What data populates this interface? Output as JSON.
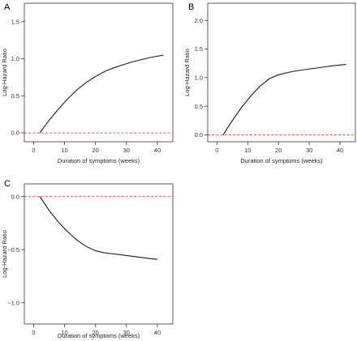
{
  "chart_data": [
    {
      "type": "line",
      "panel": "A",
      "xlabel": "Duration of symptoms (weeks)",
      "ylabel": "Log-Hazard Ratio",
      "xlim": [
        -3,
        45
      ],
      "ylim": [
        -0.12,
        1.75
      ],
      "xticks": [
        0,
        10,
        20,
        30,
        40
      ],
      "yticks": [
        0.0,
        0.5,
        1.0,
        1.5
      ],
      "ytick_labels": [
        "0.0",
        "0.5",
        "1.0",
        "1.5"
      ],
      "reference_line": {
        "y": 0,
        "color": "#e8443a"
      },
      "series": [
        {
          "x": [
            2,
            5,
            8,
            11,
            14,
            17,
            20,
            23,
            26,
            29,
            32,
            35,
            38,
            42
          ],
          "y": [
            0.0,
            0.17,
            0.32,
            0.46,
            0.58,
            0.68,
            0.76,
            0.83,
            0.88,
            0.92,
            0.96,
            0.99,
            1.02,
            1.05
          ]
        }
      ]
    },
    {
      "type": "line",
      "panel": "B",
      "xlabel": "Duration of symptoms (weeks)",
      "ylabel": "Log-Hazard Ratio",
      "xlim": [
        -3,
        45
      ],
      "ylim": [
        -0.12,
        2.3
      ],
      "xticks": [
        0,
        10,
        20,
        30,
        40
      ],
      "yticks": [
        0.0,
        0.5,
        1.0,
        1.5,
        2.0
      ],
      "ytick_labels": [
        "0.0",
        "0.5",
        "1.0",
        "1.5",
        "2.0"
      ],
      "reference_line": {
        "y": 0,
        "color": "#e8443a"
      },
      "series": [
        {
          "x": [
            2,
            5,
            8,
            11,
            14,
            17,
            20,
            23,
            26,
            30,
            34,
            38,
            42
          ],
          "y": [
            0.0,
            0.25,
            0.48,
            0.68,
            0.85,
            0.98,
            1.05,
            1.09,
            1.12,
            1.15,
            1.18,
            1.21,
            1.23
          ]
        }
      ]
    },
    {
      "type": "line",
      "panel": "C",
      "xlabel": "Duration of symptoms (weeks)",
      "ylabel": "Log-Hazard Ratio",
      "xlim": [
        -3,
        45
      ],
      "ylim": [
        -1.2,
        0.12
      ],
      "xticks": [
        0,
        10,
        20,
        30,
        40
      ],
      "yticks": [
        -1.0,
        -0.5,
        0.0
      ],
      "ytick_labels": [
        "−1.0",
        "−0.5",
        "0.0"
      ],
      "reference_line": {
        "y": 0,
        "color": "#e8443a"
      },
      "series": [
        {
          "x": [
            2,
            5,
            8,
            11,
            14,
            17,
            20,
            23,
            26,
            30,
            34,
            38,
            40
          ],
          "y": [
            0.0,
            -0.13,
            -0.24,
            -0.33,
            -0.41,
            -0.47,
            -0.51,
            -0.53,
            -0.54,
            -0.555,
            -0.57,
            -0.585,
            -0.59
          ]
        }
      ]
    }
  ]
}
